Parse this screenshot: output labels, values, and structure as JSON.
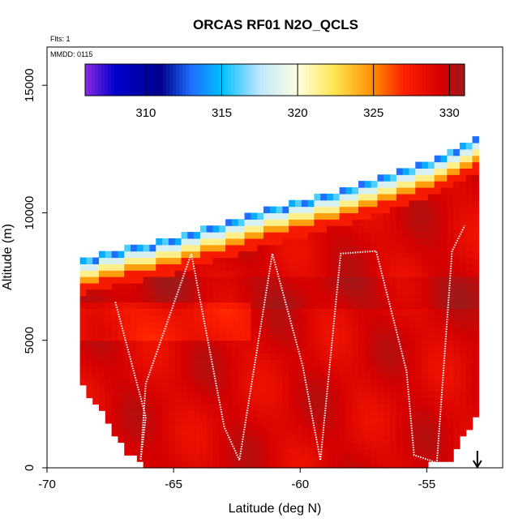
{
  "chart_data": {
    "type": "heatmap",
    "title": "ORCAS RF01 N2O_QCLS",
    "note_flights": "Flts: 1",
    "note_date": "MMDD: 0115",
    "xlabel": "Latitude (deg N)",
    "ylabel": "Altitude (m)",
    "xlim": [
      -70,
      -52
    ],
    "ylim": [
      0,
      16500
    ],
    "x_ticks": [
      -70,
      -65,
      -60,
      -55
    ],
    "x_tick_labels": [
      "-70",
      "-65",
      "-60",
      "-55"
    ],
    "y_ticks": [
      0,
      5000,
      10000,
      15000
    ],
    "y_tick_labels": [
      "0",
      "5000",
      "10000",
      "15000"
    ],
    "colorbar": {
      "min": 306,
      "max": 331,
      "ticks": [
        310,
        315,
        320,
        325,
        330
      ],
      "tick_labels": [
        "310",
        "315",
        "320",
        "325",
        "330"
      ],
      "stops": [
        {
          "v": 306,
          "c": "#8a2be2"
        },
        {
          "v": 308,
          "c": "#0000cd"
        },
        {
          "v": 311,
          "c": "#00008b"
        },
        {
          "v": 313,
          "c": "#1e6fff"
        },
        {
          "v": 315,
          "c": "#00bfff"
        },
        {
          "v": 317.5,
          "c": "#bfe6ff"
        },
        {
          "v": 320,
          "c": "#ffffe0"
        },
        {
          "v": 322.5,
          "c": "#ffe44d"
        },
        {
          "v": 325,
          "c": "#ff8c00"
        },
        {
          "v": 327,
          "c": "#ff2000"
        },
        {
          "v": 329.5,
          "c": "#d40000"
        },
        {
          "v": 331,
          "c": "#9b1b1b"
        }
      ]
    },
    "field_envelope": {
      "lat_min": -68.7,
      "lat_max": -53.0,
      "top_lat": [
        -68.7,
        -67.0,
        -65.0,
        -63.0,
        -61.0,
        -59.0,
        -57.0,
        -55.0,
        -53.0
      ],
      "top_alt": [
        8100,
        8500,
        8900,
        9500,
        10100,
        10600,
        11200,
        11900,
        12800
      ],
      "bottom_lat": [
        -68.7,
        -68.0,
        -67.0,
        -66.0,
        -64.0,
        -60.0,
        -56.0,
        -54.0,
        -53.0
      ],
      "bottom_alt": [
        3400,
        2600,
        900,
        0,
        0,
        0,
        0,
        500,
        2300
      ]
    },
    "flight_track": {
      "lat": [
        -67.3,
        -66.1,
        -66.3,
        -66.1,
        -64.3,
        -63.0,
        -62.4,
        -61.1,
        -59.9,
        -59.2,
        -58.4,
        -57.0,
        -55.8,
        -55.5,
        -54.6,
        -54.0,
        -53.5
      ],
      "alt": [
        6500,
        2000,
        300,
        3300,
        8400,
        1600,
        300,
        8400,
        4000,
        300,
        8400,
        8500,
        3800,
        500,
        200,
        8500,
        9500
      ],
      "color": "#ffffff"
    },
    "surface_marker": {
      "lat": -53.0,
      "label": "arrow-down"
    },
    "colors": {
      "background": "#ffffff",
      "frame": "#000000",
      "track": "#ffffff"
    }
  }
}
